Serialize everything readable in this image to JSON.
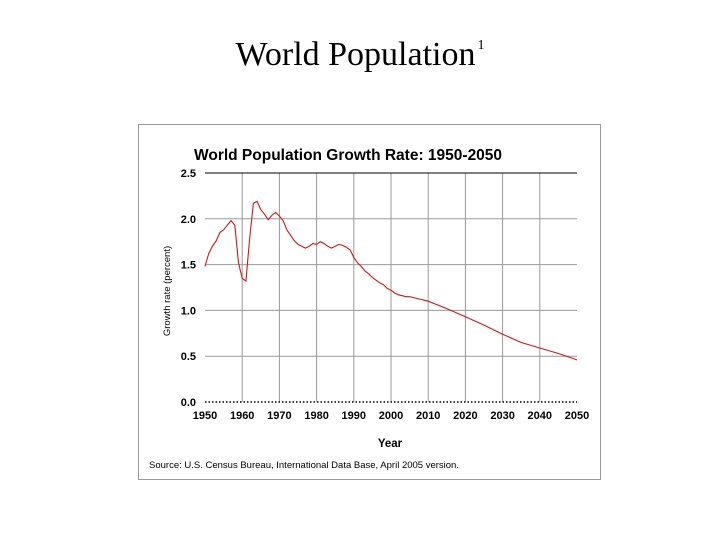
{
  "slide": {
    "title": "World Population",
    "footnote_marker": "1"
  },
  "chart_data": {
    "type": "line",
    "title": "World Population Growth Rate: 1950-2050",
    "xlabel": "Year",
    "ylabel": "Growth rate (percent)",
    "source": "Source: U.S. Census Bureau, International Data Base, April 2005 version.",
    "xlim": [
      1950,
      2050
    ],
    "ylim": [
      0,
      2.5
    ],
    "x_ticks": [
      "1950",
      "1960",
      "1970",
      "1980",
      "1990",
      "2000",
      "2010",
      "2020",
      "2030",
      "2040",
      "2050"
    ],
    "y_ticks": [
      "0.0",
      "0.5",
      "1.0",
      "1.5",
      "2.0",
      "2.5"
    ],
    "grid": true,
    "colors": {
      "line": "#cc1a1a",
      "grid": "#9a9a9a",
      "axis": "#000000"
    },
    "series": [
      {
        "x": [
          1950,
          1951,
          1952,
          1953,
          1954,
          1955,
          1956,
          1957,
          1958,
          1959,
          1960,
          1961,
          1962,
          1963,
          1964,
          1965,
          1966,
          1967,
          1968,
          1969,
          1970,
          1971,
          1972,
          1973,
          1974,
          1975,
          1976,
          1977,
          1978,
          1979,
          1980,
          1981,
          1982,
          1983,
          1984,
          1985,
          1986,
          1987,
          1988,
          1989,
          1990,
          1991,
          1992,
          1993,
          1994,
          1995,
          1996,
          1997,
          1998,
          1999,
          2000,
          2001,
          2002,
          2003,
          2004,
          2005,
          2006,
          2007,
          2008,
          2009,
          2010,
          2015,
          2020,
          2025,
          2030,
          2035,
          2040,
          2045,
          2050
        ],
        "values": [
          1.48,
          1.62,
          1.7,
          1.76,
          1.85,
          1.88,
          1.93,
          1.98,
          1.93,
          1.52,
          1.35,
          1.32,
          1.78,
          2.17,
          2.19,
          2.1,
          2.05,
          1.99,
          2.04,
          2.07,
          2.03,
          1.98,
          1.88,
          1.82,
          1.76,
          1.72,
          1.7,
          1.68,
          1.7,
          1.73,
          1.72,
          1.75,
          1.73,
          1.7,
          1.68,
          1.7,
          1.72,
          1.71,
          1.69,
          1.66,
          1.58,
          1.52,
          1.48,
          1.43,
          1.4,
          1.36,
          1.33,
          1.3,
          1.28,
          1.24,
          1.22,
          1.19,
          1.17,
          1.16,
          1.15,
          1.15,
          1.14,
          1.13,
          1.12,
          1.11,
          1.1,
          1.02,
          0.93,
          0.84,
          0.74,
          0.65,
          0.59,
          0.53,
          0.46
        ]
      }
    ]
  }
}
